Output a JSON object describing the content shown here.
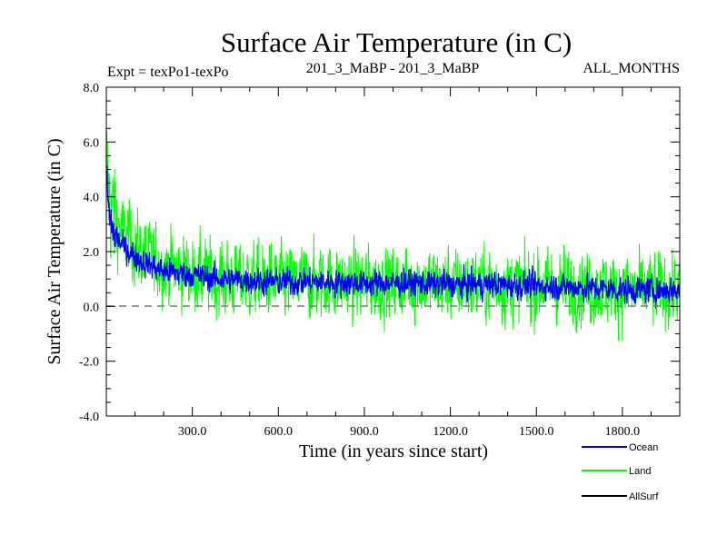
{
  "chart_data": {
    "type": "line",
    "title": "Surface Air Temperature (in C)",
    "subtitle_left": "Expt = texPo1-texPo",
    "subtitle_center": "201_3_MaBP - 201_3_MaBP",
    "subtitle_right": "ALL_MONTHS",
    "xlabel": "Time (in years since start)",
    "ylabel": "Surface Air Temperature (in C)",
    "xlim": [
      0,
      2000
    ],
    "ylim": [
      -4.0,
      8.0
    ],
    "x_ticks": [
      300,
      600,
      900,
      1200,
      1500,
      1800
    ],
    "x_tick_labels": [
      "300.0",
      "600.0",
      "900.0",
      "1200.0",
      "1500.0",
      "1800.0"
    ],
    "y_ticks": [
      -4,
      -2,
      0,
      2,
      4,
      6,
      8
    ],
    "y_tick_labels": [
      "-4.0",
      "-2.0",
      "0.0",
      "2.0",
      "4.0",
      "6.0",
      "8.0"
    ],
    "zero_line": {
      "y": 0,
      "style": "dashed"
    },
    "legend": {
      "placement": "bottom-right",
      "entries": [
        {
          "label": "Ocean",
          "color": "#0000ff"
        },
        {
          "label": "Land",
          "color": "#00ff00"
        },
        {
          "label": "AllSurf",
          "color": "#000000"
        }
      ]
    },
    "series": [
      {
        "name": "Land",
        "color": "#00ff00",
        "x": [
          0,
          10,
          25,
          50,
          100,
          150,
          200,
          300,
          400,
          500,
          600,
          750,
          900,
          1050,
          1200,
          1350,
          1500,
          1650,
          1800,
          1950,
          2000
        ],
        "values": [
          5.2,
          4.0,
          3.3,
          2.8,
          2.2,
          1.8,
          1.5,
          1.2,
          1.0,
          0.95,
          0.9,
          0.9,
          0.85,
          0.85,
          0.8,
          0.8,
          0.75,
          0.7,
          0.6,
          0.6,
          0.6
        ],
        "noise_range": [
          -2.2,
          7.8
        ]
      },
      {
        "name": "Ocean",
        "color": "#0000ff",
        "x": [
          0,
          10,
          25,
          50,
          100,
          150,
          200,
          300,
          400,
          500,
          600,
          750,
          900,
          1050,
          1200,
          1350,
          1500,
          1650,
          1800,
          1950,
          2000
        ],
        "values": [
          4.8,
          3.3,
          2.7,
          2.3,
          1.8,
          1.5,
          1.3,
          1.15,
          1.0,
          0.95,
          0.9,
          0.9,
          0.85,
          0.85,
          0.8,
          0.8,
          0.75,
          0.7,
          0.6,
          0.6,
          0.6
        ],
        "noise_range": [
          -0.2,
          5.1
        ]
      },
      {
        "name": "AllSurf",
        "color": "#000000",
        "x": [],
        "values": []
      }
    ]
  }
}
